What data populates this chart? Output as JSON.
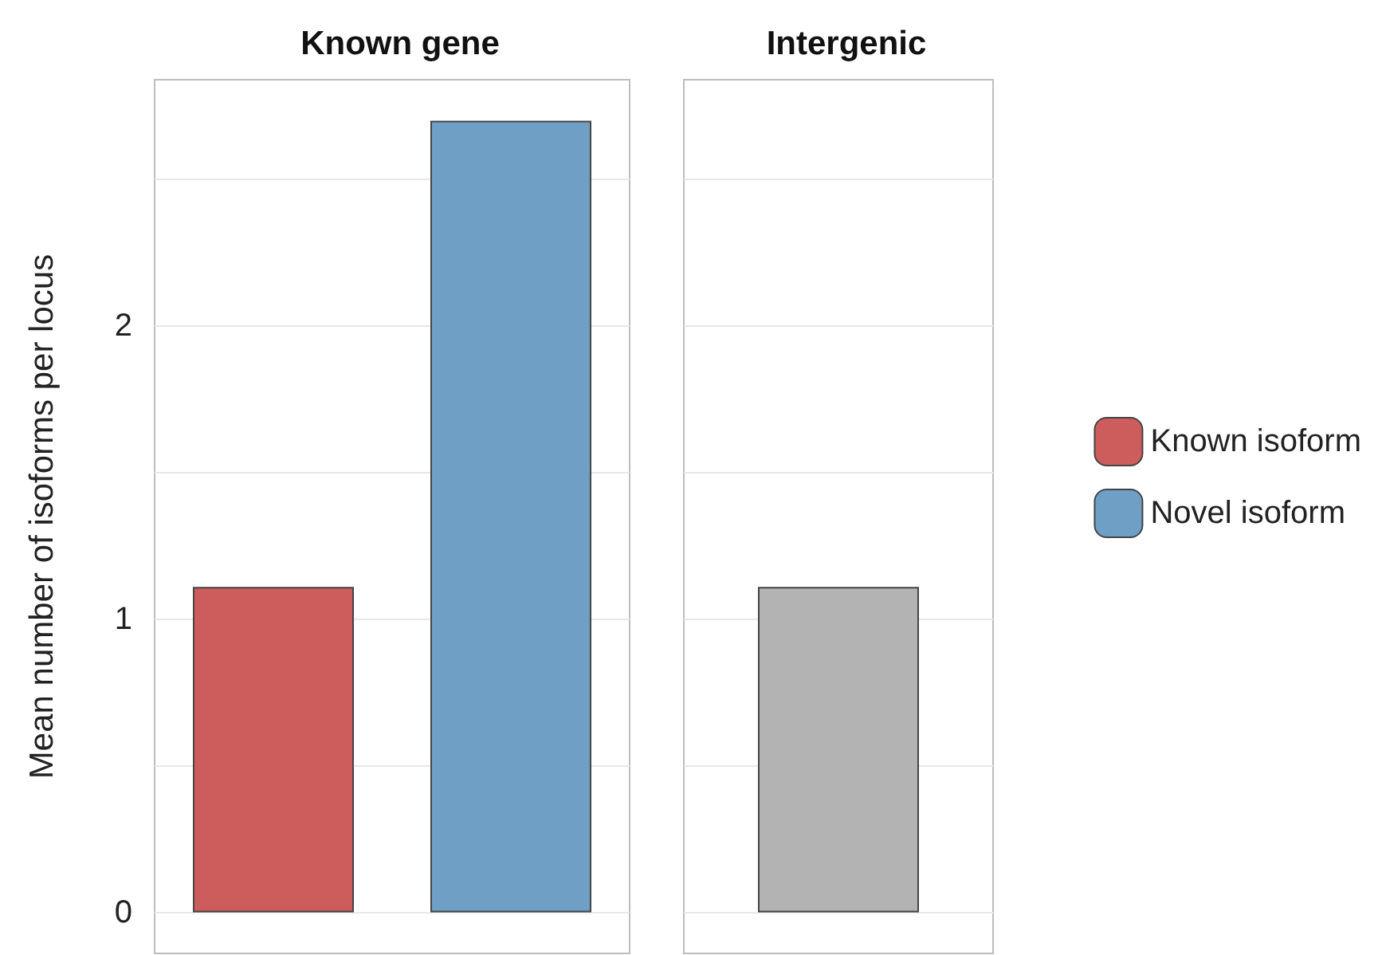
{
  "chart_data": [
    {
      "type": "bar",
      "title": "Known gene",
      "ylabel": "Mean number of isoforms per locus",
      "categories": [
        null,
        null
      ],
      "series": [
        {
          "name": "Known isoform",
          "color": "#cd5c5c",
          "values": [
            1.11,
            null
          ]
        },
        {
          "name": "Novel isoform",
          "color": "#6f9fc5",
          "values": [
            null,
            2.7
          ]
        }
      ],
      "ylim": [
        -0.14,
        2.84
      ],
      "yticks": [
        0,
        {
          "value": 0.5,
          "label": null
        },
        1,
        {
          "value": 1.5,
          "label": null
        },
        2,
        {
          "value": 2.5,
          "label": null
        }
      ],
      "grid": "y",
      "legend": "right"
    },
    {
      "type": "bar",
      "title": "Intergenic",
      "categories": [
        null
      ],
      "values": [
        1.11
      ],
      "color": "#b3b3b3",
      "ylim": [
        -0.14,
        2.84
      ],
      "yticks": [
        0,
        {
          "value": 0.5,
          "label": null
        },
        1,
        {
          "value": 1.5,
          "label": null
        },
        2,
        {
          "value": 2.5,
          "label": null
        }
      ],
      "grid": "y",
      "tick_labels": false
    }
  ]
}
